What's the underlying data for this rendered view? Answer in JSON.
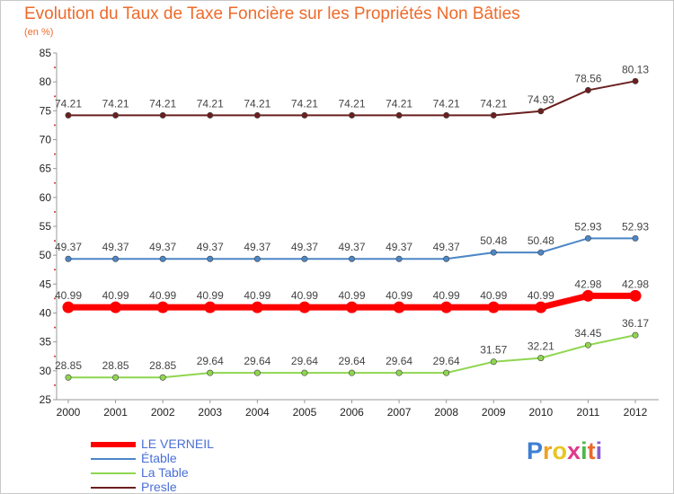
{
  "chart_data": {
    "type": "line",
    "title": "Evolution du Taux de Taxe Foncière sur les Propriétés Non Bâties",
    "subtitle": "(en %)",
    "ylim": [
      25,
      85
    ],
    "yticks": [
      25,
      30,
      35,
      40,
      45,
      50,
      55,
      60,
      65,
      70,
      75,
      80,
      85
    ],
    "x": [
      "2000",
      "2001",
      "2002",
      "2003",
      "2004",
      "2005",
      "2006",
      "2007",
      "2008",
      "2009",
      "2010",
      "2011",
      "2012"
    ],
    "grid": false,
    "legend_position": "bottom-left",
    "series": [
      {
        "name": "Presle",
        "color": "#6b1f1f",
        "values": [
          74.21,
          74.21,
          74.21,
          74.21,
          74.21,
          74.21,
          74.21,
          74.21,
          74.21,
          74.21,
          74.93,
          78.56,
          80.13
        ],
        "labels": [
          "74.21",
          "74.21",
          "74.21",
          "74.21",
          "74.21",
          "74.21",
          "74.21",
          "74.21",
          "74.21",
          "74.21",
          "74.93",
          "78.56",
          "80.13"
        ]
      },
      {
        "name": "Étable",
        "color": "#4c86c6",
        "values": [
          49.37,
          49.37,
          49.37,
          49.37,
          49.37,
          49.37,
          49.37,
          49.37,
          49.37,
          50.48,
          50.48,
          52.93,
          52.93
        ],
        "labels": [
          "49.37",
          "49.37",
          "49.37",
          "49.37",
          "49.37",
          "49.37",
          "49.37",
          "49.37",
          "49.37",
          "50.48",
          "50.48",
          "52.93",
          "52.93"
        ]
      },
      {
        "name": "LE VERNEIL",
        "color": "#ff0000",
        "values": [
          40.99,
          40.99,
          40.99,
          40.99,
          40.99,
          40.99,
          40.99,
          40.99,
          40.99,
          40.99,
          40.99,
          42.98,
          42.98
        ],
        "labels": [
          "40.99",
          "40.99",
          "40.99",
          "40.99",
          "40.99",
          "40.99",
          "40.99",
          "40.99",
          "40.99",
          "40.99",
          "40.99",
          "42.98",
          "42.98"
        ]
      },
      {
        "name": "La Table",
        "color": "#8fd650",
        "values": [
          28.85,
          28.85,
          28.85,
          29.64,
          29.64,
          29.64,
          29.64,
          29.64,
          29.64,
          31.57,
          32.21,
          34.45,
          36.17
        ],
        "labels": [
          "28.85",
          "28.85",
          "28.85",
          "29.64",
          "29.64",
          "29.64",
          "29.64",
          "29.64",
          "29.64",
          "31.57",
          "32.21",
          "34.45",
          "36.17"
        ]
      }
    ],
    "legend": [
      {
        "name": "LE VERNEIL",
        "color": "#ff0000"
      },
      {
        "name": "Étable",
        "color": "#4c86c6"
      },
      {
        "name": "La Table",
        "color": "#8fd650"
      },
      {
        "name": "Presle",
        "color": "#6b1f1f"
      }
    ]
  },
  "logo": {
    "letters": [
      "P",
      "r",
      "o",
      "x",
      "i",
      "t",
      "i"
    ],
    "colors": [
      "#3d7fd4",
      "#f0a020",
      "#e8c620",
      "#e03a8a",
      "#4cb848",
      "#e96a2a",
      "#8a5cd0"
    ]
  }
}
